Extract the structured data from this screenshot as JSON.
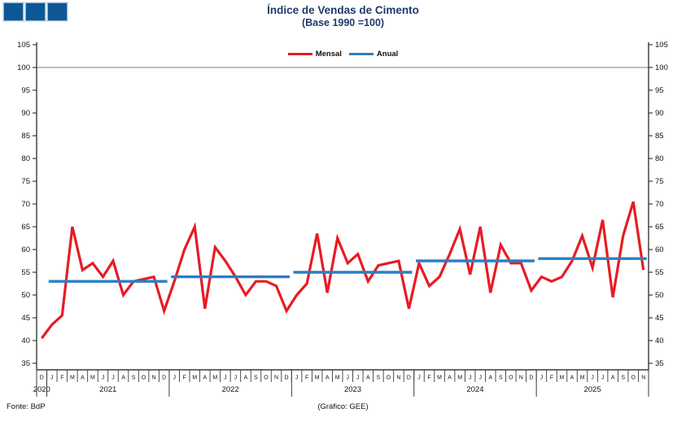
{
  "header": {
    "title": "Índice de Vendas de Cimento",
    "subtitle": "(Base 1990 =100)"
  },
  "footer": {
    "source": "Fonte: BdP",
    "credit": "(Gráfico: GEE)"
  },
  "colors": {
    "mensal_red": "#e81b23",
    "anual_blue": "#2b7fc3",
    "title_navy": "#1f3a68",
    "logo_blue": "#0d5796",
    "axis": "#3a3a3a"
  },
  "chart_data": {
    "type": "line",
    "title": "Índice de Vendas de Cimento",
    "subtitle": "(Base 1990 =100)",
    "ylabel": "",
    "xlabel": "",
    "ylim": [
      33.5,
      105.5
    ],
    "yticks": [
      105,
      100,
      95,
      90,
      85,
      80,
      75,
      70,
      65,
      60,
      55,
      50,
      45,
      40,
      35
    ],
    "grid_values": [
      100
    ],
    "legend_position": "top-center",
    "month_letters": [
      "D",
      "J",
      "F",
      "M",
      "A",
      "M",
      "J",
      "J",
      "A",
      "S",
      "O",
      "N",
      "D",
      "J",
      "F",
      "M",
      "A",
      "M",
      "J",
      "J",
      "A",
      "S",
      "O",
      "N",
      "D",
      "J",
      "F",
      "M",
      "A",
      "M",
      "J",
      "J",
      "A",
      "S",
      "O",
      "N",
      "D",
      "J",
      "F",
      "M",
      "A",
      "M",
      "J",
      "J",
      "A",
      "S",
      "O",
      "N",
      "D",
      "J",
      "F",
      "M",
      "A",
      "M",
      "J",
      "J",
      "A",
      "S",
      "O",
      "N"
    ],
    "years": [
      {
        "label": "2020",
        "months": 1
      },
      {
        "label": "2021",
        "months": 12
      },
      {
        "label": "2022",
        "months": 12
      },
      {
        "label": "2023",
        "months": 12
      },
      {
        "label": "2024",
        "months": 12
      },
      {
        "label": "2025",
        "months": 11
      }
    ],
    "series": [
      {
        "name": "Mensal",
        "color": "#e81b23",
        "first_point": "Dez 2020",
        "values": [
          40.5,
          43.5,
          45.5,
          65,
          55.5,
          57,
          54,
          57.5,
          50,
          53,
          53.5,
          54,
          46.5,
          53,
          60,
          65,
          47,
          60.5,
          57.5,
          54,
          50,
          53,
          53,
          52,
          46.5,
          50,
          52.5,
          63.5,
          50.5,
          62.5,
          57,
          59,
          53,
          56.5,
          57,
          57.5,
          47,
          57,
          52,
          54,
          59,
          64.5,
          54.5,
          65,
          50.5,
          61,
          57,
          57,
          51,
          54,
          53,
          54,
          57.5,
          63,
          56,
          66.5,
          49.5,
          63,
          70.5,
          55.5
        ]
      },
      {
        "name": "Anual",
        "color": "#2b7fc3",
        "values": [
          {
            "year": "2021",
            "value": 53
          },
          {
            "year": "2022",
            "value": 54
          },
          {
            "year": "2023",
            "value": 55
          },
          {
            "year": "2024",
            "value": 57.5
          },
          {
            "year": "2025",
            "value": 58
          }
        ]
      }
    ]
  }
}
